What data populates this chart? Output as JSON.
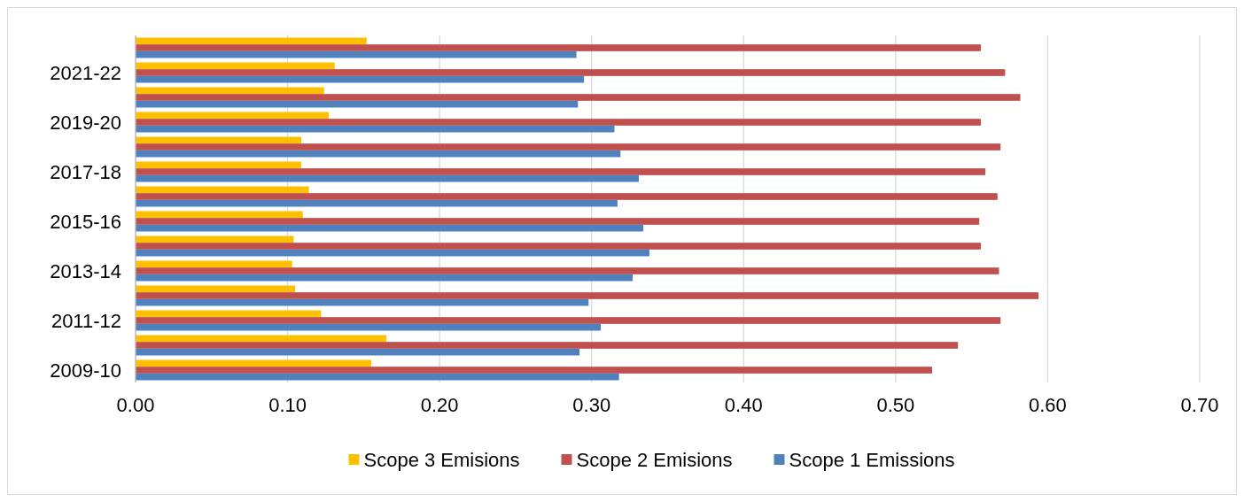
{
  "chart_data": {
    "type": "bar",
    "orientation": "horizontal",
    "categories": [
      null,
      "2021-22",
      null,
      "2019-20",
      null,
      "2017-18",
      null,
      "2015-16",
      null,
      "2013-14",
      null,
      "2011-12",
      null,
      "2009-10"
    ],
    "series": [
      {
        "name": "Scope 3 Emisions",
        "color": "#ffc000",
        "values": [
          0.152,
          0.131,
          0.124,
          0.127,
          0.109,
          0.109,
          0.114,
          0.11,
          0.104,
          0.103,
          0.105,
          0.122,
          0.165,
          0.155
        ]
      },
      {
        "name": "Scope 2 Emisions",
        "color": "#c0504d",
        "values": [
          0.556,
          0.572,
          0.582,
          0.556,
          0.569,
          0.559,
          0.567,
          0.555,
          0.556,
          0.568,
          0.594,
          0.569,
          0.541,
          0.524
        ]
      },
      {
        "name": "Scope 1 Emissions",
        "color": "#4f81bd",
        "values": [
          0.29,
          0.295,
          0.291,
          0.315,
          0.319,
          0.331,
          0.317,
          0.334,
          0.338,
          0.327,
          0.298,
          0.306,
          0.292,
          0.318
        ]
      }
    ],
    "xlim": [
      0,
      0.7
    ],
    "xticks": [
      {
        "value": 0,
        "label": "0.00"
      },
      {
        "value": 0.1,
        "label": "0.10"
      },
      {
        "value": 0.2,
        "label": "0.20"
      },
      {
        "value": 0.3,
        "label": "0.30"
      },
      {
        "value": 0.4,
        "label": "0.40"
      },
      {
        "value": 0.5,
        "label": "0.50"
      },
      {
        "value": 0.6,
        "label": "0.60"
      },
      {
        "value": 0.7,
        "label": "0.70"
      }
    ],
    "grid": "x",
    "legend": "bottom"
  }
}
